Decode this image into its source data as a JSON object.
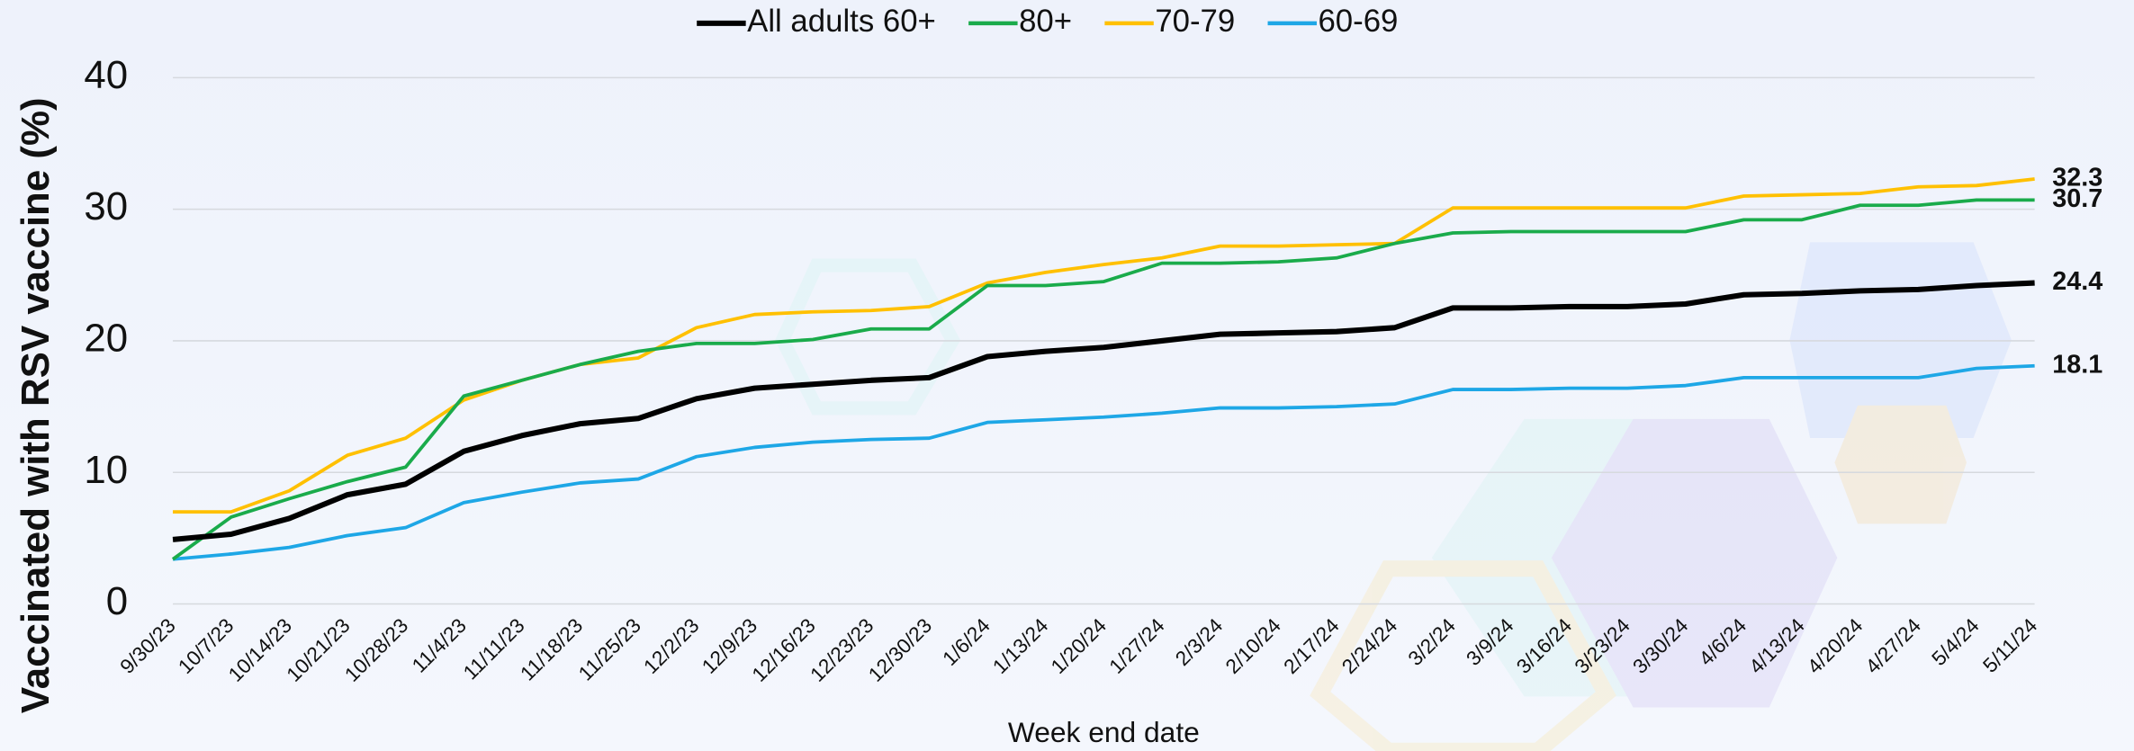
{
  "chart_data": {
    "type": "line",
    "y_axis_label": "Vaccinated with RSV vaccine (%)",
    "x_axis_label": "Week end date",
    "categories": [
      "9/30/23",
      "10/7/23",
      "10/14/23",
      "10/21/23",
      "10/28/23",
      "11/4/23",
      "11/11/23",
      "11/18/23",
      "11/25/23",
      "12/2/23",
      "12/9/23",
      "12/16/23",
      "12/23/23",
      "12/30/23",
      "1/6/24",
      "1/13/24",
      "1/20/24",
      "1/27/24",
      "2/3/24",
      "2/10/24",
      "2/17/24",
      "2/24/24",
      "3/2/24",
      "3/9/24",
      "3/16/24",
      "3/23/24",
      "3/30/24",
      "4/6/24",
      "4/13/24",
      "4/20/24",
      "4/27/24",
      "5/4/24",
      "5/11/24"
    ],
    "series": [
      {
        "name": "All adults 60+",
        "color": "#000000",
        "label_color": "#000000",
        "values": [
          4.9,
          5.3,
          6.5,
          8.3,
          9.1,
          11.6,
          12.8,
          13.7,
          14.1,
          15.6,
          16.4,
          16.7,
          17.0,
          17.2,
          18.8,
          19.2,
          19.5,
          20.0,
          20.5,
          20.6,
          20.7,
          21.0,
          22.5,
          22.5,
          22.6,
          22.6,
          22.8,
          23.5,
          23.6,
          23.8,
          23.9,
          24.2,
          24.4
        ]
      },
      {
        "name": "80+",
        "color": "#1aab4b",
        "label_color": "#119142",
        "values": [
          3.4,
          6.6,
          8.0,
          9.3,
          10.4,
          15.8,
          17.0,
          18.2,
          19.2,
          19.8,
          19.8,
          20.1,
          20.9,
          20.9,
          24.2,
          24.2,
          24.5,
          25.9,
          25.9,
          26.0,
          26.3,
          27.4,
          28.2,
          28.3,
          28.3,
          28.3,
          28.3,
          29.2,
          29.2,
          30.3,
          30.3,
          30.7,
          30.7
        ]
      },
      {
        "name": "70-79",
        "color": "#ffc000",
        "label_color": "#f39c12",
        "values": [
          7.0,
          7.0,
          8.6,
          11.3,
          12.6,
          15.5,
          17.0,
          18.2,
          18.7,
          21.0,
          22.0,
          22.2,
          22.3,
          22.6,
          24.4,
          25.2,
          25.8,
          26.3,
          27.2,
          27.2,
          27.3,
          27.4,
          30.1,
          30.1,
          30.1,
          30.1,
          30.1,
          31.0,
          31.1,
          31.2,
          31.7,
          31.8,
          32.3
        ]
      },
      {
        "name": "60-69",
        "color": "#1ea7e6",
        "label_color": "#1f4e9c",
        "values": [
          3.4,
          3.8,
          4.3,
          5.2,
          5.8,
          7.7,
          8.5,
          9.2,
          9.5,
          11.2,
          11.9,
          12.3,
          12.5,
          12.6,
          13.8,
          14.0,
          14.2,
          14.5,
          14.9,
          14.9,
          15.0,
          15.2,
          16.3,
          16.3,
          16.4,
          16.4,
          16.6,
          17.2,
          17.2,
          17.2,
          17.2,
          17.9,
          18.1
        ]
      }
    ],
    "ylim": [
      0,
      40
    ],
    "yticks": [
      0,
      10,
      20,
      30,
      40
    ],
    "grid": true
  }
}
